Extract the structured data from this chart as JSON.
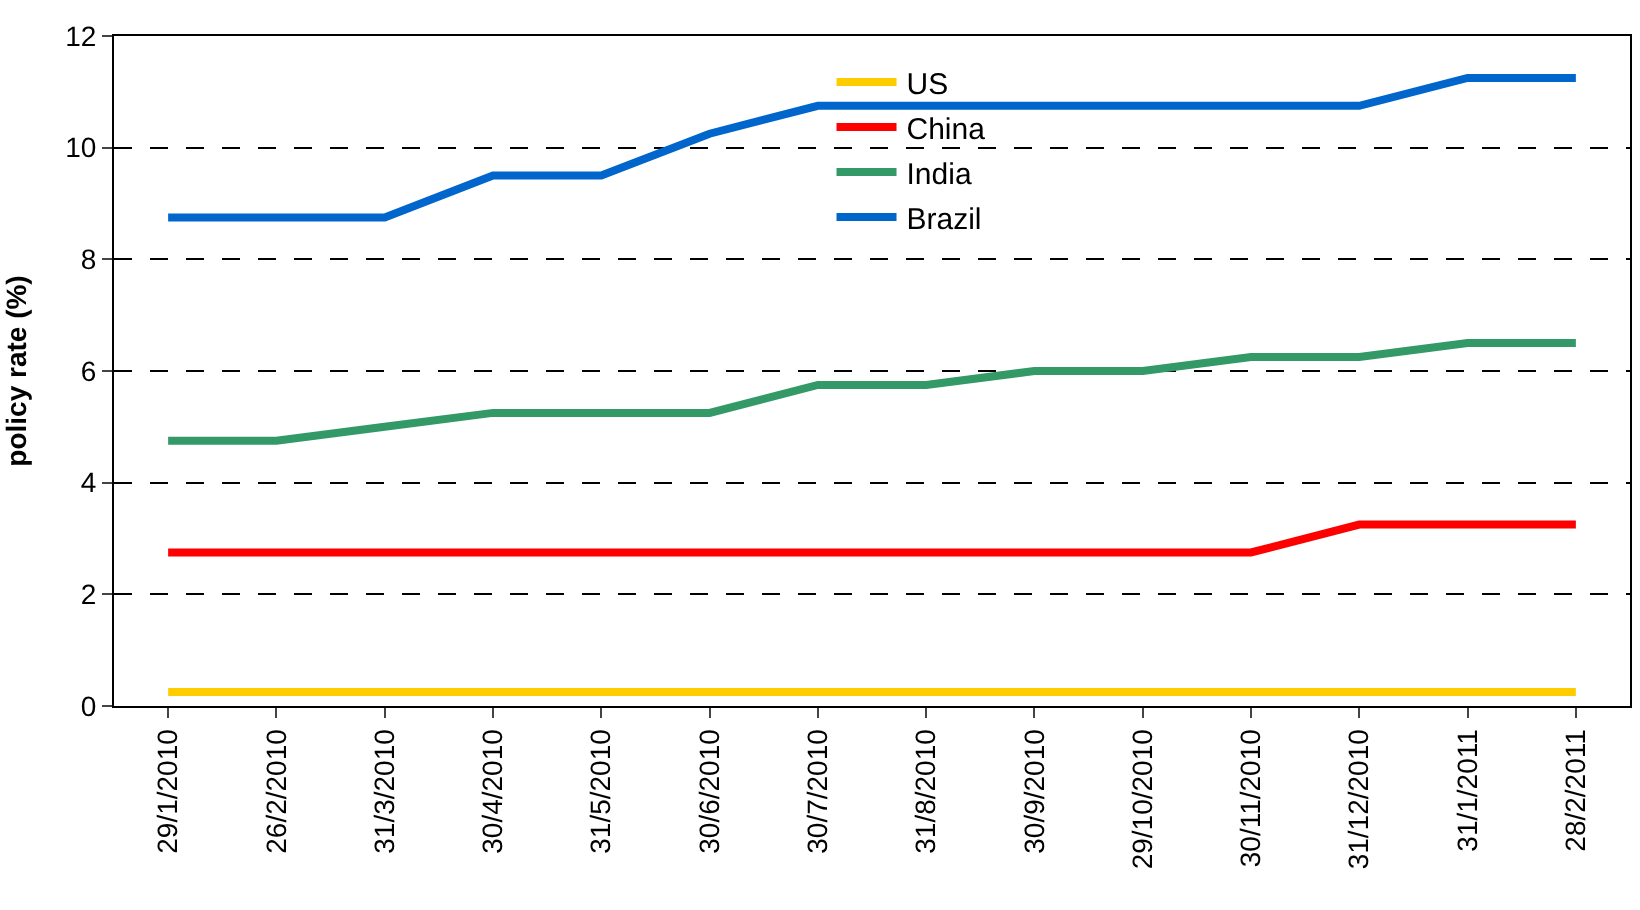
{
  "chart_data": {
    "type": "line",
    "ylabel": "policy rate (%)",
    "categories": [
      "29/1/2010",
      "26/2/2010",
      "31/3/2010",
      "30/4/2010",
      "31/5/2010",
      "30/6/2010",
      "30/7/2010",
      "31/8/2010",
      "30/9/2010",
      "29/10/2010",
      "30/11/2010",
      "31/12/2010",
      "31/1/2011",
      "28/2/2011"
    ],
    "series": [
      {
        "name": "US",
        "color": "#ffcc00",
        "values": [
          0.25,
          0.25,
          0.25,
          0.25,
          0.25,
          0.25,
          0.25,
          0.25,
          0.25,
          0.25,
          0.25,
          0.25,
          0.25,
          0.25
        ]
      },
      {
        "name": "China",
        "color": "#ff0000",
        "values": [
          2.75,
          2.75,
          2.75,
          2.75,
          2.75,
          2.75,
          2.75,
          2.75,
          2.75,
          2.75,
          2.75,
          3.25,
          3.25,
          3.25
        ]
      },
      {
        "name": "India",
        "color": "#339966",
        "values": [
          4.75,
          4.75,
          5.0,
          5.25,
          5.25,
          5.25,
          5.75,
          5.75,
          6.0,
          6.0,
          6.25,
          6.25,
          6.5,
          6.5
        ]
      },
      {
        "name": "Brazil",
        "color": "#0066cc",
        "values": [
          8.75,
          8.75,
          8.75,
          9.5,
          9.5,
          10.25,
          10.75,
          10.75,
          10.75,
          10.75,
          10.75,
          10.75,
          11.25,
          11.25
        ]
      }
    ],
    "ylim": [
      0,
      12
    ],
    "yticks": [
      0,
      2,
      4,
      6,
      8,
      10,
      12
    ],
    "grid": "y",
    "legend": "top",
    "marker": "none",
    "line_style": "solid"
  }
}
